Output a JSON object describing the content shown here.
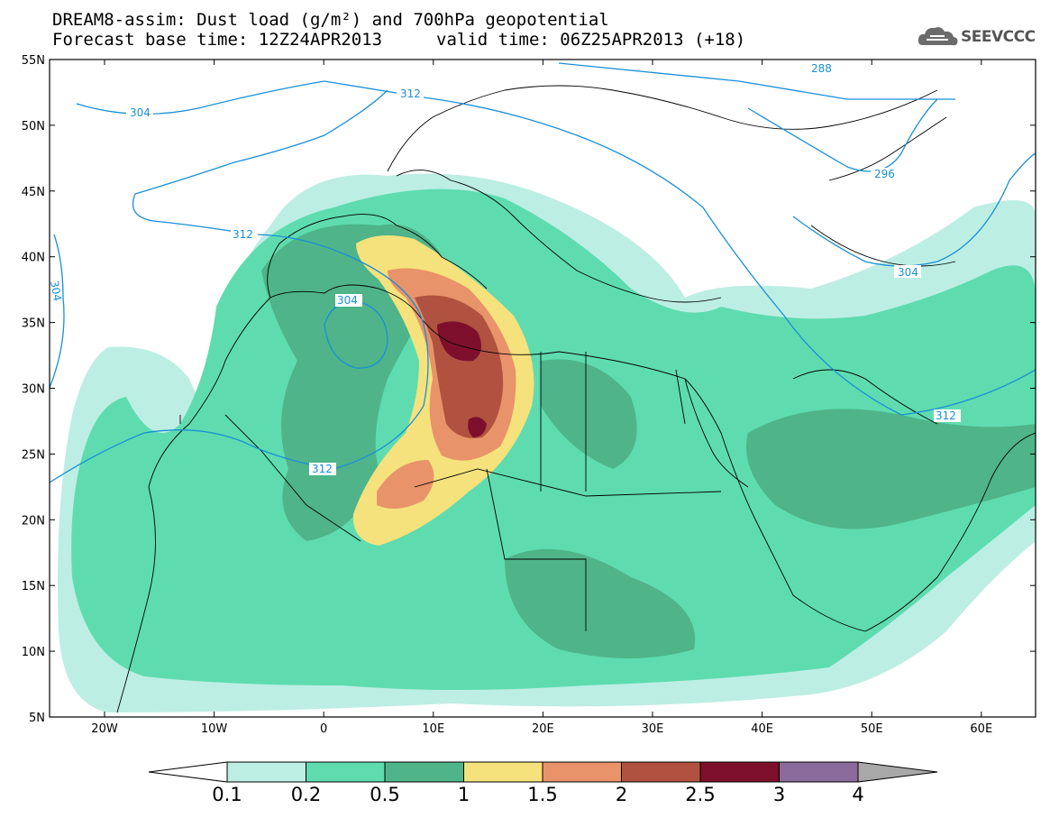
{
  "header": {
    "title_line1": "DREAM8-assim: Dust load (g/m²) and 700hPa geopotential",
    "title_line2": "Forecast base time: 12Z24APR2013",
    "valid_time": "valid time: 06Z25APR2013 (+18)",
    "logo_text": "SEEVCCC"
  },
  "map": {
    "lat_labels": [
      "55N",
      "50N",
      "45N",
      "40N",
      "35N",
      "30N",
      "25N",
      "20N",
      "15N",
      "10N",
      "5N"
    ],
    "lon_labels": [
      "20W",
      "10W",
      "0",
      "10E",
      "20E",
      "30E",
      "40E",
      "50E",
      "60E"
    ],
    "contour_labels": [
      "304",
      "312",
      "288",
      "296",
      "312",
      "304",
      "304",
      "312",
      "312",
      "304"
    ],
    "contour_color": "#1a8fd6"
  },
  "colorbar": {
    "labels": [
      "0.1",
      "0.2",
      "0.5",
      "1",
      "1.5",
      "2",
      "2.5",
      "3",
      "4"
    ],
    "colors": [
      "#bdeee3",
      "#5edcb0",
      "#4fb489",
      "#f5e27c",
      "#e9936a",
      "#b0523f",
      "#7d0f2c",
      "#8b6b9c",
      "#a8a8a8"
    ]
  }
}
